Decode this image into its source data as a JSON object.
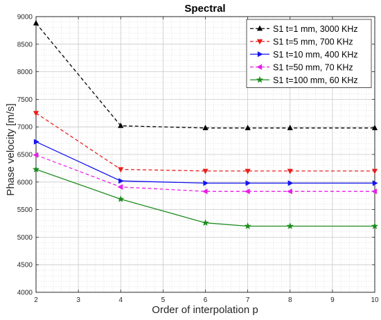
{
  "chart_data": {
    "type": "line",
    "title": "Spectral",
    "xlabel": "Order of interpolation p",
    "ylabel": "Phase velocity [m/s]",
    "xlim": [
      2,
      10
    ],
    "ylim": [
      4000,
      9000
    ],
    "xticks": [
      2,
      3,
      4,
      5,
      6,
      7,
      8,
      9,
      10
    ],
    "yticks": [
      4000,
      4500,
      5000,
      5500,
      6000,
      6500,
      7000,
      7500,
      8000,
      8500,
      9000
    ],
    "grid": true,
    "minor_grid": true,
    "legend_position": "top-right",
    "x": [
      2,
      4,
      6,
      7,
      8,
      10
    ],
    "series": [
      {
        "name": "S1 t=1 mm, 3000 KHz",
        "color": "#000000",
        "dash": "dashed",
        "marker": "triangle-up",
        "values": [
          8880,
          7020,
          6980,
          6980,
          6980,
          6980
        ]
      },
      {
        "name": "S1 t=5 mm, 700 KHz",
        "color": "#e8201e",
        "dash": "dashed",
        "marker": "triangle-down",
        "values": [
          7250,
          6230,
          6200,
          6200,
          6200,
          6200
        ]
      },
      {
        "name": "S1 t=10 mm, 400 KHz",
        "color": "#1414f0",
        "dash": "solid",
        "marker": "triangle-right",
        "values": [
          6730,
          6020,
          5980,
          5980,
          5980,
          5980
        ]
      },
      {
        "name": "S1 t=50 mm, 70 KHz",
        "color": "#e81ee8",
        "dash": "dashed",
        "marker": "triangle-left",
        "values": [
          6490,
          5910,
          5830,
          5830,
          5830,
          5830
        ]
      },
      {
        "name": "S1 t=100 mm, 60 KHz",
        "color": "#1e8c1e",
        "dash": "solid",
        "marker": "star",
        "values": [
          6230,
          5690,
          5260,
          5200,
          5200,
          5200
        ]
      }
    ]
  }
}
